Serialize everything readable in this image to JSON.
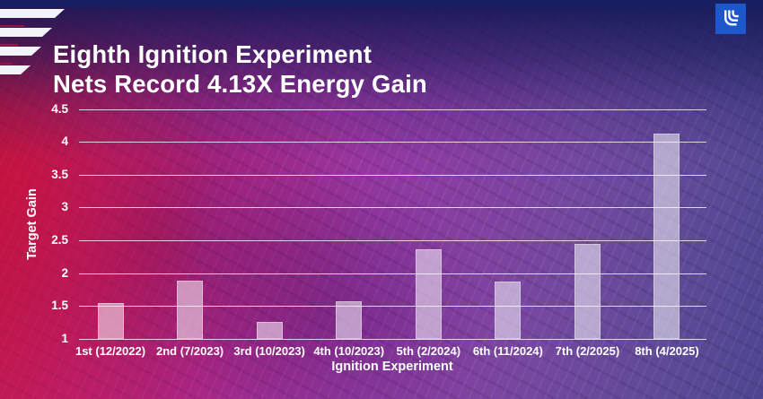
{
  "header": {
    "title_line1": "Eighth Ignition Experiment",
    "title_line2": "Nets Record 4.13X Energy Gain"
  },
  "logo": {
    "name": "llnl-logo",
    "square_color": "#1e57c9",
    "mark_color": "#ffffff"
  },
  "decoration": {
    "stripe_color": "#f2f4fa",
    "separator_color": "#9c1240"
  },
  "colors": {
    "top_band": "#181f60",
    "text": "#ffffff",
    "gridline": "rgba(255,255,255,0.78)",
    "bar_fill": "rgba(248,246,252,0.55)",
    "bg_left_red": "#b01338",
    "bg_magenta": "#ad2b94",
    "bg_right_purple": "#4d4590"
  },
  "chart_data": {
    "type": "bar",
    "title": "Eighth Ignition Experiment Nets Record 4.13X Energy Gain",
    "xlabel": "Ignition Experiment",
    "ylabel": "Target Gain",
    "categories": [
      "1st (12/2022)",
      "2nd (7/2023)",
      "3rd (10/2023)",
      "4th (10/2023)",
      "5th (2/2024)",
      "6th (11/2024)",
      "7th (2/2025)",
      "8th (4/2025)"
    ],
    "values": [
      1.54,
      1.89,
      1.26,
      1.57,
      2.36,
      1.88,
      2.44,
      4.13
    ],
    "ylim": [
      1,
      4.5
    ],
    "yticks": [
      "1",
      "1.5",
      "2",
      "2.5",
      "3",
      "3.5",
      "4",
      "4.5"
    ],
    "grid": true,
    "legend": null
  }
}
